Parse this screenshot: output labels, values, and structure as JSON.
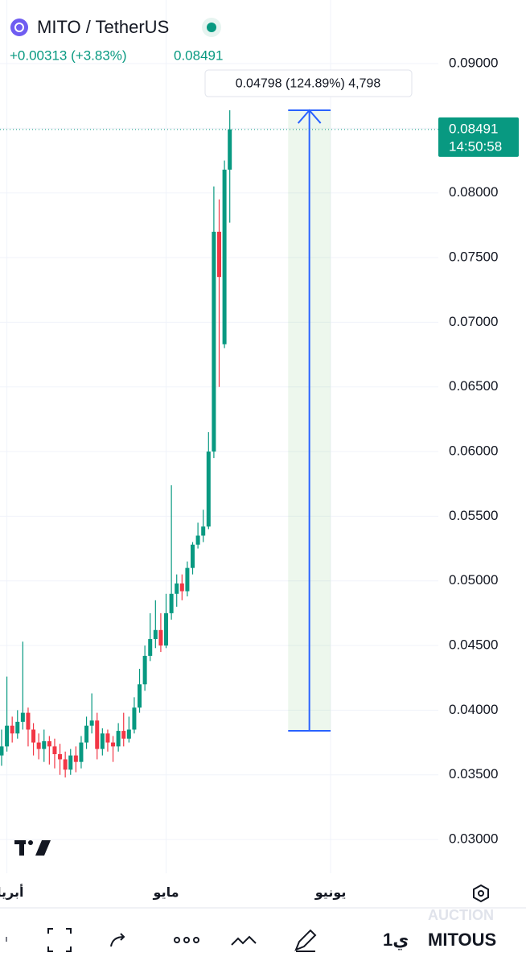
{
  "chart_data": {
    "type": "candlestick",
    "title": "MITO / TetherUS",
    "change": "+0.00313 (+3.83%)",
    "last_price": {
      "value": 0.08491,
      "label": "0.08491"
    },
    "countdown": "14:50:58",
    "up_color": "#089981",
    "down_color": "#f23645",
    "open": [
      0.0365,
      0.0372,
      0.0388,
      0.0382,
      0.0391,
      0.0398,
      0.0385,
      0.0375,
      0.037,
      0.0376,
      0.0372,
      0.0366,
      0.0362,
      0.0354,
      0.0365,
      0.036,
      0.0375,
      0.0388,
      0.0392,
      0.037,
      0.0382,
      0.0375,
      0.0372,
      0.0384,
      0.0378,
      0.0385,
      0.0402,
      0.042,
      0.0442,
      0.0455,
      0.0462,
      0.045,
      0.0475,
      0.049,
      0.0498,
      0.0492,
      0.051,
      0.0528,
      0.0535,
      0.0542,
      0.06,
      0.077,
      0.0683,
      0.0818
    ],
    "high": [
      0.0385,
      0.0426,
      0.0395,
      0.04,
      0.0453,
      0.0402,
      0.039,
      0.0382,
      0.0385,
      0.038,
      0.0378,
      0.0374,
      0.0368,
      0.037,
      0.0372,
      0.038,
      0.0395,
      0.0413,
      0.0398,
      0.0386,
      0.0385,
      0.038,
      0.039,
      0.0398,
      0.0395,
      0.041,
      0.0432,
      0.045,
      0.0475,
      0.0485,
      0.0475,
      0.049,
      0.0574,
      0.0505,
      0.0505,
      0.0515,
      0.053,
      0.0545,
      0.0555,
      0.0615,
      0.0805,
      0.0795,
      0.0825,
      0.08639
    ],
    "low": [
      0.0357,
      0.0368,
      0.0375,
      0.0378,
      0.0385,
      0.0372,
      0.0365,
      0.0362,
      0.036,
      0.0358,
      0.0355,
      0.035,
      0.0348,
      0.035,
      0.0352,
      0.0355,
      0.037,
      0.0382,
      0.0362,
      0.0365,
      0.0368,
      0.036,
      0.0368,
      0.0372,
      0.0375,
      0.0382,
      0.0398,
      0.0415,
      0.0438,
      0.0448,
      0.0445,
      0.0448,
      0.047,
      0.048,
      0.0485,
      0.0488,
      0.0505,
      0.0525,
      0.053,
      0.054,
      0.0595,
      0.065,
      0.068,
      0.0777
    ],
    "close": [
      0.0372,
      0.0388,
      0.0382,
      0.0391,
      0.0398,
      0.0385,
      0.0375,
      0.037,
      0.0376,
      0.0372,
      0.0366,
      0.0362,
      0.0354,
      0.0365,
      0.036,
      0.0375,
      0.0388,
      0.0392,
      0.037,
      0.0382,
      0.0375,
      0.0372,
      0.0384,
      0.0378,
      0.0385,
      0.0402,
      0.042,
      0.0442,
      0.0455,
      0.0462,
      0.045,
      0.0475,
      0.049,
      0.0498,
      0.0492,
      0.051,
      0.0528,
      0.0535,
      0.0542,
      0.06,
      0.077,
      0.0735,
      0.0818,
      0.08491
    ],
    "xlim": [
      -0.3,
      82.3
    ],
    "xticks": [
      {
        "value": 1,
        "label": "أبريل"
      },
      {
        "value": 31,
        "label": "مايو"
      },
      {
        "value": 62,
        "label": "يونيو"
      }
    ],
    "ylim": [
      0.02739,
      0.09492
    ],
    "yticks": [
      {
        "value": 0.03,
        "label": "0.03000"
      },
      {
        "value": 0.035,
        "label": "0.03500"
      },
      {
        "value": 0.04,
        "label": "0.04000"
      },
      {
        "value": 0.045,
        "label": "0.04500"
      },
      {
        "value": 0.05,
        "label": "0.05000"
      },
      {
        "value": 0.055,
        "label": "0.05500"
      },
      {
        "value": 0.06,
        "label": "0.06000"
      },
      {
        "value": 0.065,
        "label": "0.06500"
      },
      {
        "value": 0.07,
        "label": "0.07000"
      },
      {
        "value": 0.075,
        "label": "0.07500"
      },
      {
        "value": 0.08,
        "label": "0.08000"
      },
      {
        "value": 0.085,
        "label": "0.08500"
      },
      {
        "value": 0.09,
        "label": "0.09000"
      }
    ],
    "grid": true,
    "measure": {
      "from": 0.03841,
      "to": 0.08639,
      "x_from": 54,
      "x_to": 62,
      "label": "0.04798 (124.89%) 4,798",
      "color": "#2962ff"
    },
    "symbol": "MITOUS",
    "interval": "1ي",
    "watermark": "AUCTION"
  }
}
